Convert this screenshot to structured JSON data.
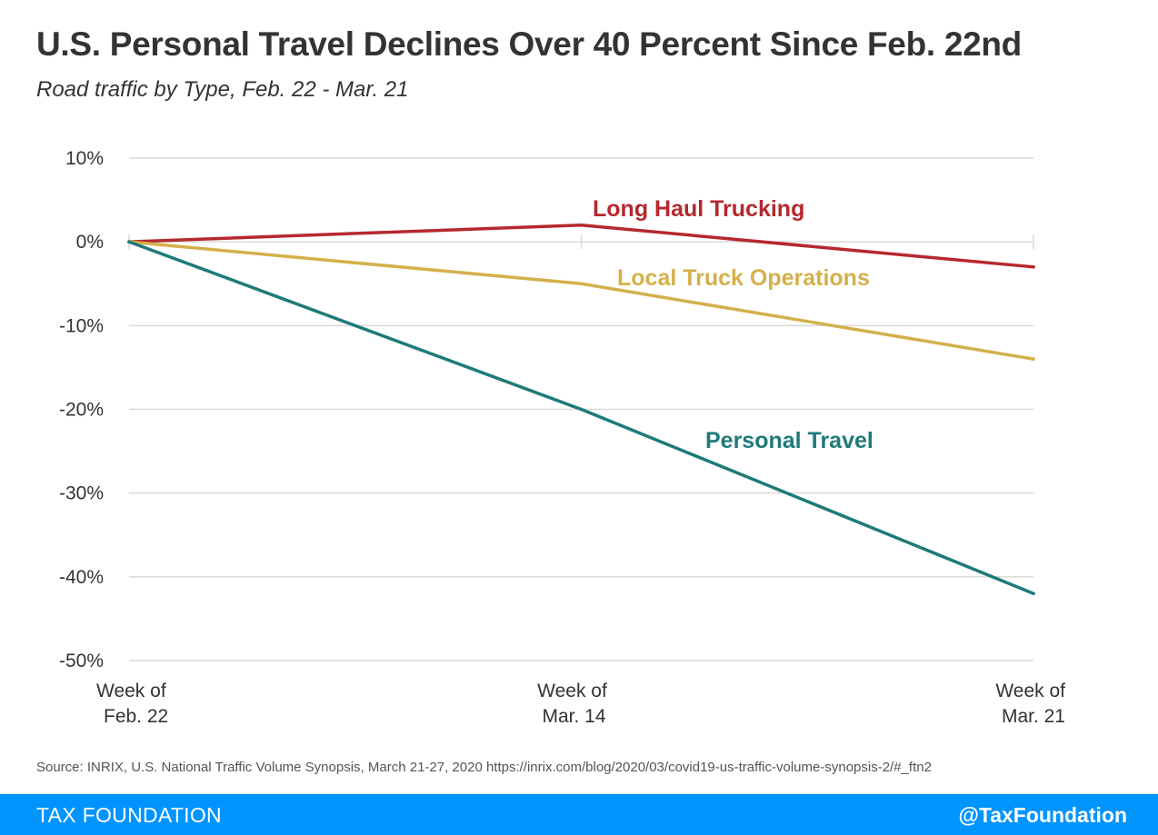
{
  "header": {
    "title": "U.S. Personal Travel Declines Over 40 Percent Since Feb. 22nd",
    "subtitle": "Road traffic by Type, Feb. 22 - Mar. 21"
  },
  "chart_data": {
    "type": "line",
    "categories": [
      [
        "Week of",
        "Feb. 22"
      ],
      [
        "Week of",
        "Mar. 14"
      ],
      [
        "Week of",
        "Mar. 21"
      ]
    ],
    "y_ticks": [
      {
        "value": 10,
        "label": "10%"
      },
      {
        "value": 0,
        "label": "0%"
      },
      {
        "value": -10,
        "label": "-10%"
      },
      {
        "value": -20,
        "label": "-20%"
      },
      {
        "value": -30,
        "label": "-30%"
      },
      {
        "value": -40,
        "label": "-40%"
      },
      {
        "value": -50,
        "label": "-50%"
      }
    ],
    "ylim": [
      -50,
      10
    ],
    "grid": true,
    "series": [
      {
        "name": "Long Haul Trucking",
        "values": [
          0,
          2,
          -3
        ],
        "color": "#b5282e"
      },
      {
        "name": "Local Truck Operations",
        "values": [
          0,
          -5,
          -14
        ],
        "color": "#d4b04a"
      },
      {
        "name": "Personal Travel",
        "values": [
          0,
          -20,
          -42
        ],
        "color": "#1f7a7a"
      }
    ]
  },
  "footer": {
    "source": "Source: INRIX, U.S. National Traffic Volume Synopsis, March 21-27, 2020 https://inrix.com/blog/2020/03/covid19-us-traffic-volume-synopsis-2/#_ftn2",
    "brand": "TAX FOUNDATION",
    "handle": "@TaxFoundation"
  }
}
